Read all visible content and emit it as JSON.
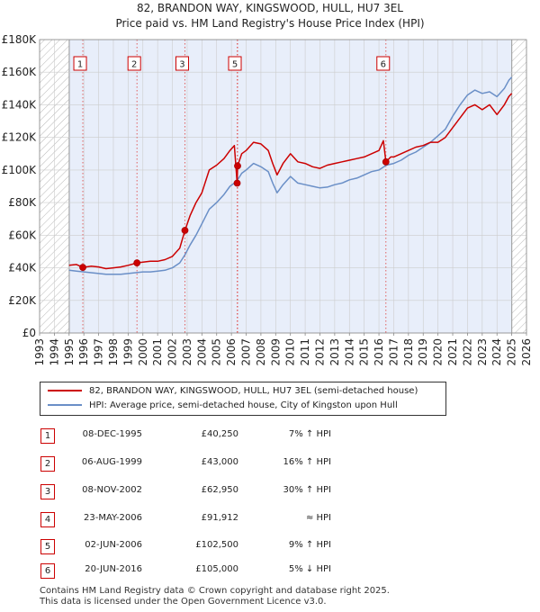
{
  "title_line1": "82, BRANDON WAY, KINGSWOOD, HULL, HU7 3EL",
  "title_line2": "Price paid vs. HM Land Registry's House Price Index (HPI)",
  "colors": {
    "property": "#cc0000",
    "hpi": "#6a8fc7",
    "shade": "#e8eefa",
    "hatch": "#b8b8b8",
    "grid": "#cccccc",
    "marker_line": "#e06060"
  },
  "chart_data": {
    "type": "line",
    "xlim": [
      1993,
      2026
    ],
    "ylim": [
      0,
      180000
    ],
    "ytick_labels": [
      "£0",
      "£20K",
      "£40K",
      "£60K",
      "£80K",
      "£100K",
      "£120K",
      "£140K",
      "£160K",
      "£180K"
    ],
    "ytick_values": [
      0,
      20000,
      40000,
      60000,
      80000,
      100000,
      120000,
      140000,
      160000,
      180000
    ],
    "xtick_labels": [
      "1993",
      "1994",
      "1995",
      "1996",
      "1997",
      "1998",
      "1999",
      "2000",
      "2001",
      "2002",
      "2003",
      "2004",
      "2005",
      "2006",
      "2007",
      "2008",
      "2009",
      "2010",
      "2011",
      "2012",
      "2013",
      "2014",
      "2015",
      "2016",
      "2017",
      "2018",
      "2019",
      "2020",
      "2021",
      "2022",
      "2023",
      "2024",
      "2025",
      "2026"
    ],
    "shaded_range": [
      1995.0,
      2025.0
    ],
    "hatched_ranges": [
      [
        1993,
        1995.0
      ],
      [
        2025.0,
        2026
      ]
    ],
    "series": [
      {
        "name": "82, BRANDON WAY, KINGSWOOD, HULL, HU7 3EL (semi-detached house)",
        "points": [
          [
            1995.0,
            41500
          ],
          [
            1995.5,
            42000
          ],
          [
            1995.93,
            40250
          ],
          [
            1996.5,
            41000
          ],
          [
            1997.0,
            40500
          ],
          [
            1997.5,
            39500
          ],
          [
            1998.0,
            40000
          ],
          [
            1998.5,
            40500
          ],
          [
            1999.0,
            41500
          ],
          [
            1999.6,
            43000
          ],
          [
            2000.0,
            43500
          ],
          [
            2000.5,
            44000
          ],
          [
            2001.0,
            44000
          ],
          [
            2001.5,
            45000
          ],
          [
            2002.0,
            47000
          ],
          [
            2002.5,
            52000
          ],
          [
            2002.85,
            62950
          ],
          [
            2003.2,
            72000
          ],
          [
            2003.6,
            80000
          ],
          [
            2004.0,
            86000
          ],
          [
            2004.5,
            100000
          ],
          [
            2005.0,
            103000
          ],
          [
            2005.5,
            107000
          ],
          [
            2005.9,
            112000
          ],
          [
            2006.2,
            115000
          ],
          [
            2006.39,
            91912
          ],
          [
            2006.42,
            102500
          ],
          [
            2006.7,
            110000
          ],
          [
            2007.0,
            112000
          ],
          [
            2007.5,
            117000
          ],
          [
            2008.0,
            116000
          ],
          [
            2008.5,
            112000
          ],
          [
            2008.8,
            104000
          ],
          [
            2009.1,
            97000
          ],
          [
            2009.5,
            104000
          ],
          [
            2010.0,
            110000
          ],
          [
            2010.5,
            105000
          ],
          [
            2011.0,
            104000
          ],
          [
            2011.5,
            102000
          ],
          [
            2012.0,
            101000
          ],
          [
            2012.5,
            103000
          ],
          [
            2013.0,
            104000
          ],
          [
            2013.5,
            105000
          ],
          [
            2014.0,
            106000
          ],
          [
            2014.5,
            107000
          ],
          [
            2015.0,
            108000
          ],
          [
            2015.5,
            110000
          ],
          [
            2016.0,
            112000
          ],
          [
            2016.3,
            118000
          ],
          [
            2016.47,
            105000
          ],
          [
            2016.8,
            108000
          ],
          [
            2017.0,
            108000
          ],
          [
            2017.5,
            110000
          ],
          [
            2018.0,
            112000
          ],
          [
            2018.5,
            114000
          ],
          [
            2019.0,
            115000
          ],
          [
            2019.5,
            117000
          ],
          [
            2020.0,
            117000
          ],
          [
            2020.5,
            120000
          ],
          [
            2021.0,
            126000
          ],
          [
            2021.5,
            132000
          ],
          [
            2022.0,
            138000
          ],
          [
            2022.5,
            140000
          ],
          [
            2023.0,
            137000
          ],
          [
            2023.5,
            140000
          ],
          [
            2024.0,
            134000
          ],
          [
            2024.5,
            140000
          ],
          [
            2024.8,
            145000
          ],
          [
            2025.0,
            147000
          ]
        ]
      },
      {
        "name": "HPI: Average price, semi-detached house, City of Kingston upon Hull",
        "points": [
          [
            1995.0,
            38500
          ],
          [
            1995.5,
            38000
          ],
          [
            1996.0,
            37500
          ],
          [
            1996.5,
            37000
          ],
          [
            1997.0,
            36500
          ],
          [
            1997.5,
            36000
          ],
          [
            1998.0,
            36000
          ],
          [
            1998.5,
            36000
          ],
          [
            1999.0,
            36500
          ],
          [
            1999.5,
            37000
          ],
          [
            2000.0,
            37500
          ],
          [
            2000.5,
            37500
          ],
          [
            2001.0,
            38000
          ],
          [
            2001.5,
            38500
          ],
          [
            2002.0,
            40000
          ],
          [
            2002.5,
            43000
          ],
          [
            2002.85,
            48000
          ],
          [
            2003.2,
            54000
          ],
          [
            2003.6,
            60000
          ],
          [
            2004.0,
            67000
          ],
          [
            2004.5,
            76000
          ],
          [
            2005.0,
            80000
          ],
          [
            2005.5,
            85000
          ],
          [
            2005.9,
            90000
          ],
          [
            2006.2,
            92000
          ],
          [
            2006.5,
            95000
          ],
          [
            2006.7,
            98000
          ],
          [
            2007.0,
            100000
          ],
          [
            2007.5,
            104000
          ],
          [
            2008.0,
            102000
          ],
          [
            2008.5,
            99000
          ],
          [
            2008.8,
            92000
          ],
          [
            2009.1,
            86000
          ],
          [
            2009.5,
            91000
          ],
          [
            2010.0,
            96000
          ],
          [
            2010.5,
            92000
          ],
          [
            2011.0,
            91000
          ],
          [
            2011.5,
            90000
          ],
          [
            2012.0,
            89000
          ],
          [
            2012.5,
            89500
          ],
          [
            2013.0,
            91000
          ],
          [
            2013.5,
            92000
          ],
          [
            2014.0,
            94000
          ],
          [
            2014.5,
            95000
          ],
          [
            2015.0,
            97000
          ],
          [
            2015.5,
            99000
          ],
          [
            2016.0,
            100000
          ],
          [
            2016.5,
            103000
          ],
          [
            2017.0,
            104000
          ],
          [
            2017.5,
            106000
          ],
          [
            2018.0,
            109000
          ],
          [
            2018.5,
            111000
          ],
          [
            2019.0,
            114000
          ],
          [
            2019.5,
            117000
          ],
          [
            2020.0,
            121000
          ],
          [
            2020.5,
            125000
          ],
          [
            2021.0,
            133000
          ],
          [
            2021.5,
            140000
          ],
          [
            2022.0,
            146000
          ],
          [
            2022.5,
            149000
          ],
          [
            2023.0,
            147000
          ],
          [
            2023.5,
            148000
          ],
          [
            2024.0,
            145000
          ],
          [
            2024.5,
            150000
          ],
          [
            2024.8,
            155000
          ],
          [
            2025.0,
            157000
          ]
        ]
      }
    ],
    "sales": [
      {
        "label": "1",
        "x": 1995.93,
        "y": 40250
      },
      {
        "label": "2",
        "x": 1999.6,
        "y": 43000
      },
      {
        "label": "3",
        "x": 2002.85,
        "y": 62950
      },
      {
        "label": "4",
        "x": 2006.39,
        "y": 91912
      },
      {
        "label": "5",
        "x": 2006.42,
        "y": 102500
      },
      {
        "label": "6",
        "x": 2016.47,
        "y": 105000
      }
    ],
    "chart_badges": [
      {
        "label": "1",
        "x": 1995.93
      },
      {
        "label": "2",
        "x": 1999.6
      },
      {
        "label": "3",
        "x": 2002.85
      },
      {
        "label": "5",
        "x": 2006.42
      },
      {
        "label": "6",
        "x": 2016.47
      }
    ]
  },
  "legend": {
    "property_label": "82, BRANDON WAY, KINGSWOOD, HULL, HU7 3EL (semi-detached house)",
    "hpi_label": "HPI: Average price, semi-detached house, City of Kingston upon Hull"
  },
  "sales_table": [
    {
      "num": "1",
      "date": "08-DEC-1995",
      "price": "£40,250",
      "rel": "7% ↑ HPI"
    },
    {
      "num": "2",
      "date": "06-AUG-1999",
      "price": "£43,000",
      "rel": "16% ↑ HPI"
    },
    {
      "num": "3",
      "date": "08-NOV-2002",
      "price": "£62,950",
      "rel": "30% ↑ HPI"
    },
    {
      "num": "4",
      "date": "23-MAY-2006",
      "price": "£91,912",
      "rel": "≈ HPI"
    },
    {
      "num": "5",
      "date": "02-JUN-2006",
      "price": "£102,500",
      "rel": "9% ↑ HPI"
    },
    {
      "num": "6",
      "date": "20-JUN-2016",
      "price": "£105,000",
      "rel": "5% ↓ HPI"
    }
  ],
  "footer_line1": "Contains HM Land Registry data © Crown copyright and database right 2025.",
  "footer_line2": "This data is licensed under the Open Government Licence v3.0."
}
